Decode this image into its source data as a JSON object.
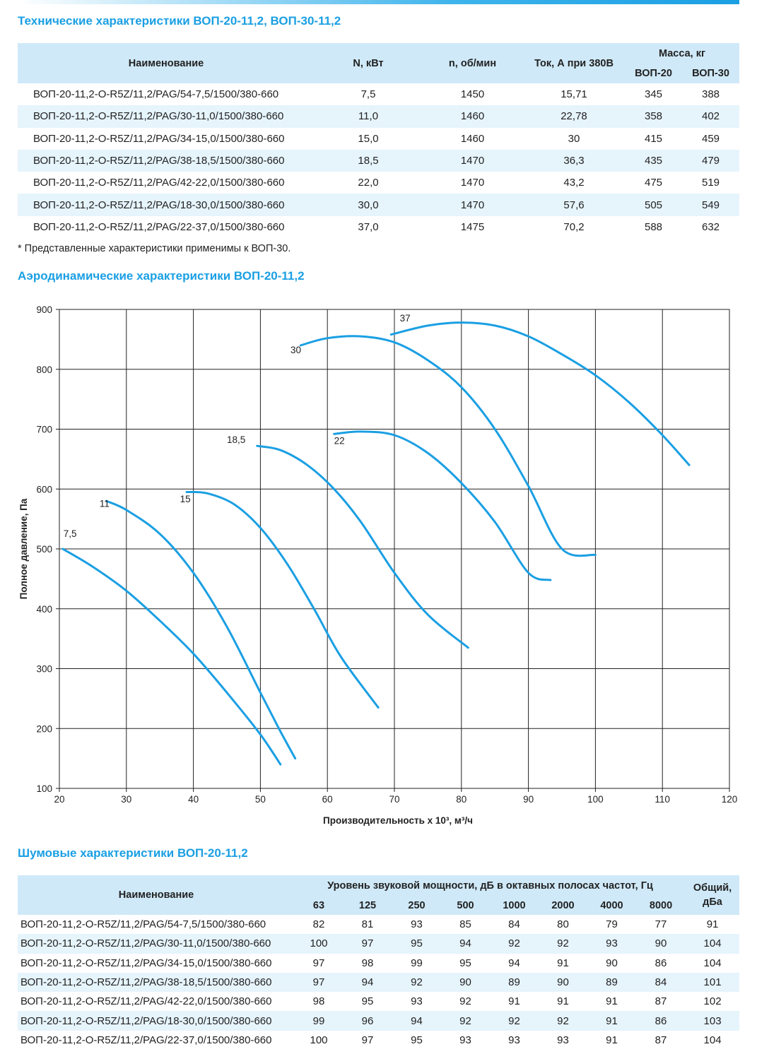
{
  "tech": {
    "title": "Технические характеристики ВОП-20-11,2, ВОП-30-11,2",
    "headers": {
      "name": "Наименование",
      "power": "N, кВт",
      "rpm": "n, об/мин",
      "current": "Ток, А при 380В",
      "mass": "Масса, кг",
      "mass20": "ВОП-20",
      "mass30": "ВОП-30"
    },
    "rows": [
      [
        "ВОП-20-11,2-O-R5Z/11,2/PAG/54-7,5/1500/380-660",
        "7,5",
        "1450",
        "15,71",
        "345",
        "388"
      ],
      [
        "ВОП-20-11,2-O-R5Z/11,2/PAG/30-11,0/1500/380-660",
        "11,0",
        "1460",
        "22,78",
        "358",
        "402"
      ],
      [
        "ВОП-20-11,2-O-R5Z/11,2/PAG/34-15,0/1500/380-660",
        "15,0",
        "1460",
        "30",
        "415",
        "459"
      ],
      [
        "ВОП-20-11,2-O-R5Z/11,2/PAG/38-18,5/1500/380-660",
        "18,5",
        "1470",
        "36,3",
        "435",
        "479"
      ],
      [
        "ВОП-20-11,2-O-R5Z/11,2/PAG/42-22,0/1500/380-660",
        "22,0",
        "1470",
        "43,2",
        "475",
        "519"
      ],
      [
        "ВОП-20-11,2-O-R5Z/11,2/PAG/18-30,0/1500/380-660",
        "30,0",
        "1470",
        "57,6",
        "505",
        "549"
      ],
      [
        "ВОП-20-11,2-O-R5Z/11,2/PAG/22-37,0/1500/380-660",
        "37,0",
        "1475",
        "70,2",
        "588",
        "632"
      ]
    ],
    "footnote": "* Представленные характеристики применимы к ВОП-30."
  },
  "aero": {
    "title": "Аэродинамические характеристики ВОП-20-11,2"
  },
  "chart_data": {
    "type": "line",
    "title": "",
    "xlabel": "Производительность х 10³, м³/ч",
    "ylabel": "Полное давление, Па",
    "xlim": [
      20,
      120
    ],
    "ylim": [
      100,
      900
    ],
    "xticks": [
      20,
      30,
      40,
      50,
      60,
      70,
      80,
      90,
      100,
      110,
      120
    ],
    "yticks": [
      100,
      200,
      300,
      400,
      500,
      600,
      700,
      800,
      900
    ],
    "grid": true,
    "color": "#1a9fe3",
    "series": [
      {
        "name": "7,5",
        "label_at": [
          20.6,
          520
        ],
        "points": [
          [
            20.5,
            500
          ],
          [
            25,
            470
          ],
          [
            30,
            430
          ],
          [
            35,
            380
          ],
          [
            40,
            325
          ],
          [
            45,
            260
          ],
          [
            50,
            190
          ],
          [
            53,
            140
          ]
        ]
      },
      {
        "name": "11",
        "label_at": [
          26.0,
          570
        ],
        "points": [
          [
            27,
            580
          ],
          [
            30,
            565
          ],
          [
            35,
            525
          ],
          [
            40,
            460
          ],
          [
            45,
            370
          ],
          [
            50,
            260
          ],
          [
            53,
            195
          ],
          [
            55.2,
            150
          ]
        ]
      },
      {
        "name": "15",
        "label_at": [
          38.0,
          578
        ],
        "points": [
          [
            39,
            595
          ],
          [
            42,
            593
          ],
          [
            46,
            575
          ],
          [
            50,
            535
          ],
          [
            54,
            475
          ],
          [
            58,
            400
          ],
          [
            62,
            320
          ],
          [
            67.6,
            235
          ]
        ]
      },
      {
        "name": "18,5",
        "label_at": [
          45.0,
          677
        ],
        "points": [
          [
            49.5,
            672
          ],
          [
            53,
            665
          ],
          [
            57,
            640
          ],
          [
            61,
            600
          ],
          [
            65,
            545
          ],
          [
            70,
            460
          ],
          [
            75,
            390
          ],
          [
            81,
            335
          ]
        ]
      },
      {
        "name": "22",
        "label_at": [
          61.0,
          675
        ],
        "points": [
          [
            61,
            692
          ],
          [
            65,
            696
          ],
          [
            70,
            690
          ],
          [
            75,
            660
          ],
          [
            80,
            610
          ],
          [
            85,
            545
          ],
          [
            90,
            460
          ],
          [
            93.3,
            448
          ]
        ]
      },
      {
        "name": "30",
        "label_at": [
          54.5,
          827
        ],
        "points": [
          [
            56,
            840
          ],
          [
            60,
            852
          ],
          [
            65,
            855
          ],
          [
            70,
            845
          ],
          [
            75,
            815
          ],
          [
            80,
            770
          ],
          [
            85,
            700
          ],
          [
            90,
            605
          ],
          [
            95,
            500
          ],
          [
            100,
            490
          ]
        ]
      },
      {
        "name": "37",
        "label_at": [
          70.8,
          880
        ],
        "points": [
          [
            69.5,
            858
          ],
          [
            75,
            873
          ],
          [
            80,
            878
          ],
          [
            85,
            873
          ],
          [
            90,
            855
          ],
          [
            95,
            825
          ],
          [
            100,
            790
          ],
          [
            105,
            745
          ],
          [
            110,
            690
          ],
          [
            114,
            640
          ]
        ]
      }
    ]
  },
  "noise": {
    "title": "Шумовые характеристики ВОП-20-11,2",
    "headers": {
      "name": "Наименование",
      "level": "Уровень звуковой мощности, дБ в октавных полосах частот, Гц",
      "total": "Общий, дБа",
      "freqs": [
        "63",
        "125",
        "250",
        "500",
        "1000",
        "2000",
        "4000",
        "8000"
      ]
    },
    "rows": [
      [
        "ВОП-20-11,2-O-R5Z/11,2/PAG/54-7,5/1500/380-660",
        "82",
        "81",
        "93",
        "85",
        "84",
        "80",
        "79",
        "77",
        "91"
      ],
      [
        "ВОП-20-11,2-O-R5Z/11,2/PAG/30-11,0/1500/380-660",
        "100",
        "97",
        "95",
        "94",
        "92",
        "92",
        "93",
        "90",
        "104"
      ],
      [
        "ВОП-20-11,2-O-R5Z/11,2/PAG/34-15,0/1500/380-660",
        "97",
        "98",
        "99",
        "95",
        "94",
        "91",
        "90",
        "86",
        "104"
      ],
      [
        "ВОП-20-11,2-O-R5Z/11,2/PAG/38-18,5/1500/380-660",
        "97",
        "94",
        "92",
        "90",
        "89",
        "90",
        "89",
        "84",
        "101"
      ],
      [
        "ВОП-20-11,2-O-R5Z/11,2/PAG/42-22,0/1500/380-660",
        "98",
        "95",
        "93",
        "92",
        "91",
        "91",
        "91",
        "87",
        "102"
      ],
      [
        "ВОП-20-11,2-O-R5Z/11,2/PAG/18-30,0/1500/380-660",
        "99",
        "96",
        "94",
        "92",
        "92",
        "92",
        "91",
        "86",
        "103"
      ],
      [
        "ВОП-20-11,2-O-R5Z/11,2/PAG/22-37,0/1500/380-660",
        "100",
        "97",
        "95",
        "93",
        "93",
        "93",
        "91",
        "87",
        "104"
      ]
    ]
  }
}
